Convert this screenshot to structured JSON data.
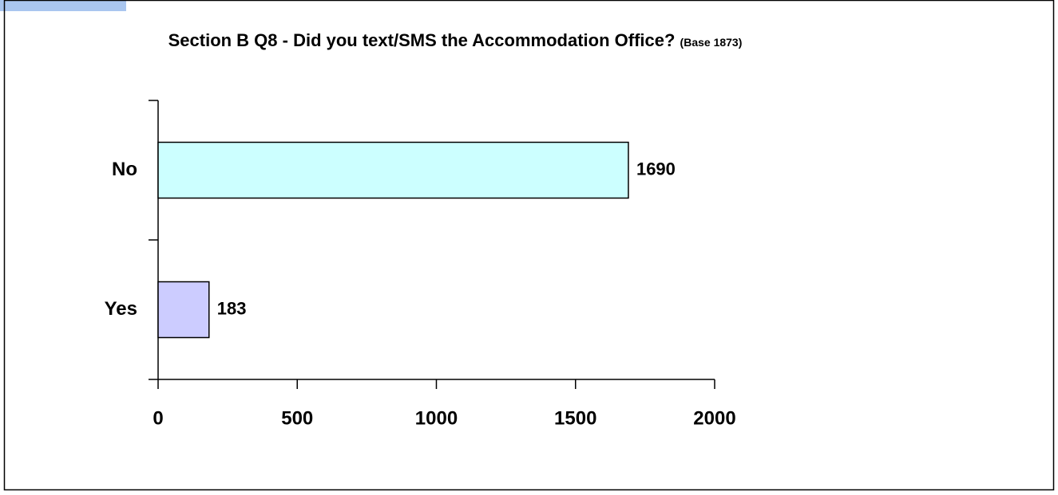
{
  "chart_data": {
    "type": "hbar",
    "title": "Section B Q8 - Did you text/SMS the Accommodation Office?",
    "subtitle": "(Base 1873)",
    "categories": [
      "No",
      "Yes"
    ],
    "values": [
      1690,
      183
    ],
    "colors": [
      "#ccffff",
      "#ccccff"
    ],
    "xlim": [
      0,
      2000
    ],
    "xticks": [
      0,
      500,
      1000,
      1500,
      2000
    ]
  }
}
